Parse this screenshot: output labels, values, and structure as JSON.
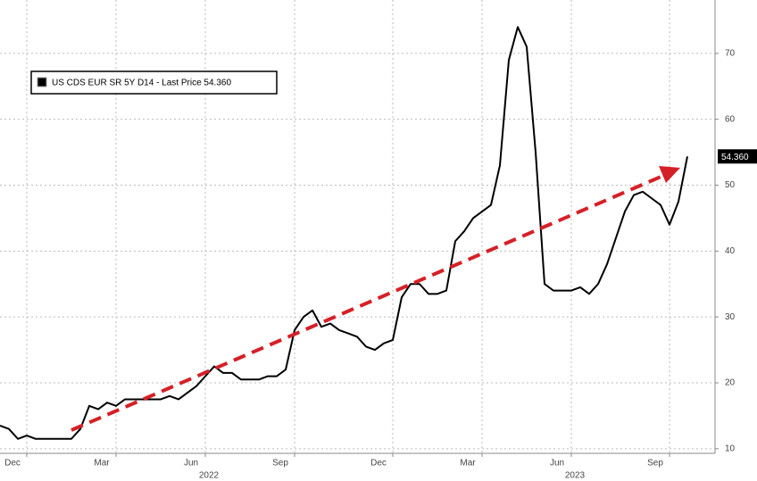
{
  "chart_data": {
    "type": "line",
    "categories": [
      null,
      null,
      null,
      "Dec",
      null,
      null,
      null,
      null,
      null,
      null,
      null,
      null,
      null,
      "Mar",
      null,
      null,
      null,
      null,
      null,
      null,
      null,
      null,
      null,
      "Jun",
      null,
      null,
      null,
      null,
      null,
      null,
      null,
      null,
      null,
      "Sep",
      null,
      null,
      null,
      null,
      null,
      null,
      null,
      null,
      null,
      null,
      "Dec",
      null,
      null,
      null,
      null,
      null,
      null,
      null,
      null,
      null,
      "Mar",
      null,
      null,
      null,
      null,
      null,
      null,
      null,
      null,
      null,
      "Jun",
      null,
      null,
      null,
      null,
      null,
      null,
      null,
      null,
      null,
      null,
      "Sep",
      null,
      null
    ],
    "years": [
      "2022",
      "2023"
    ],
    "series": [
      {
        "name": "US CDS EUR SR 5Y D14 - Last Price 54.360",
        "color": "#000000",
        "last_label": "54.360",
        "values": [
          13.5,
          13,
          11.5,
          12,
          11.5,
          11.5,
          11.5,
          11.5,
          11.5,
          13,
          16.5,
          16,
          17,
          16.5,
          17.5,
          17.5,
          17.5,
          17.5,
          17.5,
          18,
          17.5,
          18.5,
          19.5,
          21,
          22.5,
          21.5,
          21.5,
          20.5,
          20.5,
          20.5,
          21,
          21,
          22,
          28,
          30,
          31,
          28.5,
          29,
          28,
          27.5,
          27,
          25.5,
          25,
          26,
          26.5,
          33,
          35,
          35,
          33.5,
          33.5,
          34,
          41.5,
          43,
          45,
          46,
          47,
          53,
          69,
          74,
          71,
          55,
          35,
          34,
          34,
          34,
          34.5,
          33.5,
          35,
          38,
          42,
          46,
          48.5,
          49,
          48,
          47,
          44,
          47.5,
          54.36
        ]
      }
    ],
    "ylim": [
      9.3,
      78.1
    ],
    "yticks": [
      10,
      20,
      30,
      40,
      50,
      60,
      70
    ],
    "grid": true,
    "legend": "top-left"
  }
}
